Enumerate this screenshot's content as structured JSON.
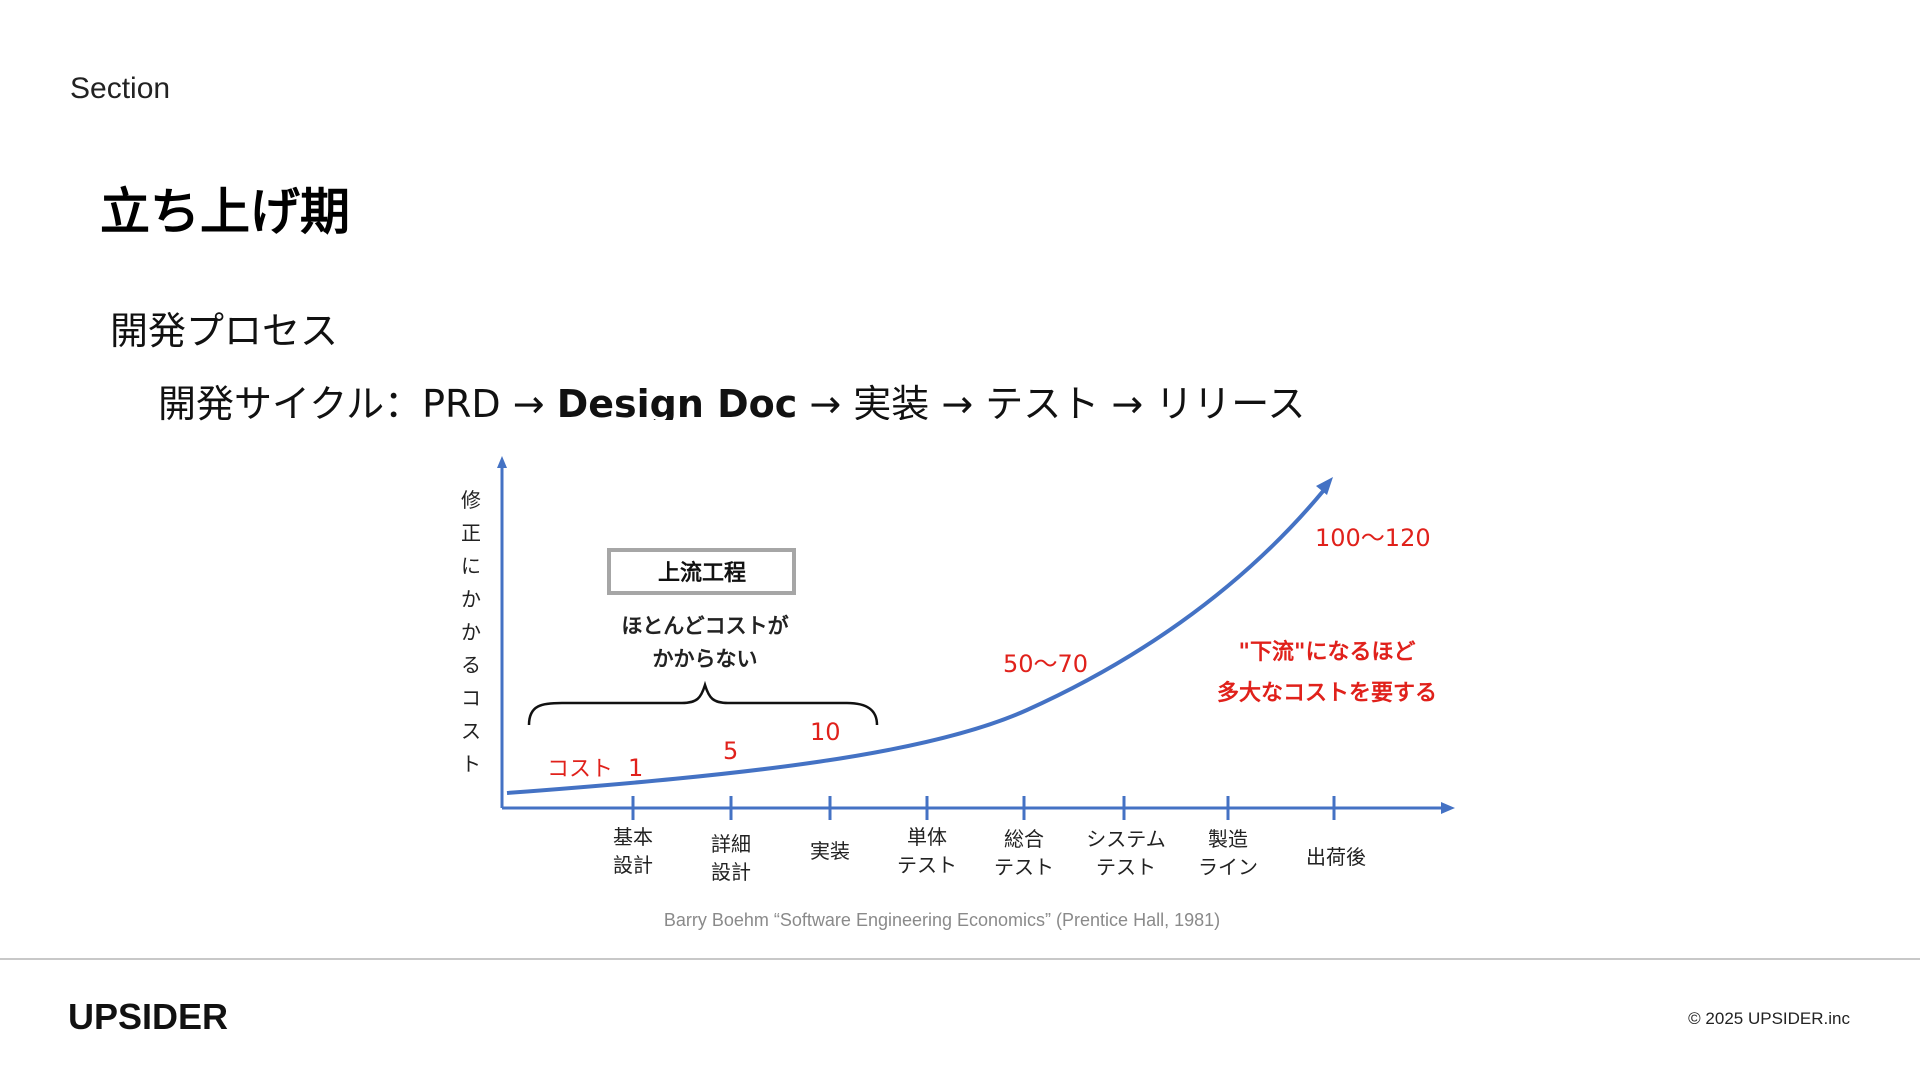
{
  "header": {
    "section_label": "Section",
    "title": "立ち上げ期"
  },
  "content": {
    "subheading": "開発プロセス",
    "cycle_prefix": "開発サイクル：PRD → ",
    "cycle_emphasis": "Design Doc",
    "cycle_suffix": " → 実装 → テスト → リリース"
  },
  "figure": {
    "y_axis_label_chars": [
      "修",
      "正",
      "に",
      "か",
      "か",
      "る",
      "コ",
      "ス",
      "ト"
    ],
    "stages": [
      {
        "lines": [
          "基本",
          "設計"
        ]
      },
      {
        "lines": [
          "詳細",
          "設計"
        ]
      },
      {
        "lines": [
          "実装"
        ]
      },
      {
        "lines": [
          "単体",
          "テスト"
        ]
      },
      {
        "lines": [
          "総合",
          "テスト"
        ]
      },
      {
        "lines": [
          "システム",
          "テスト"
        ]
      },
      {
        "lines": [
          "製造",
          "ライン"
        ]
      },
      {
        "lines": [
          "出荷後"
        ]
      }
    ],
    "cost_prefix": "コスト",
    "cost_labels": [
      "1",
      "5",
      "10",
      "50〜70",
      "100〜120"
    ],
    "upstream_box": "上流工程",
    "upstream_note_line1": "ほとんどコストが",
    "upstream_note_line2": "かからない",
    "downstream_note_line1": "\"下流\"になるほど",
    "downstream_note_line2": "多大なコストを要する",
    "colors": {
      "axis": "#4472c4",
      "curve": "#4472c4",
      "cost_text": "#e0211b",
      "box_border": "#a6a6a6"
    }
  },
  "citation": "Barry Boehm “Software Engineering Economics” (Prentice Hall, 1981)",
  "footer": {
    "logo": "UPSIDER",
    "copyright": "© 2025 UPSIDER.inc"
  }
}
